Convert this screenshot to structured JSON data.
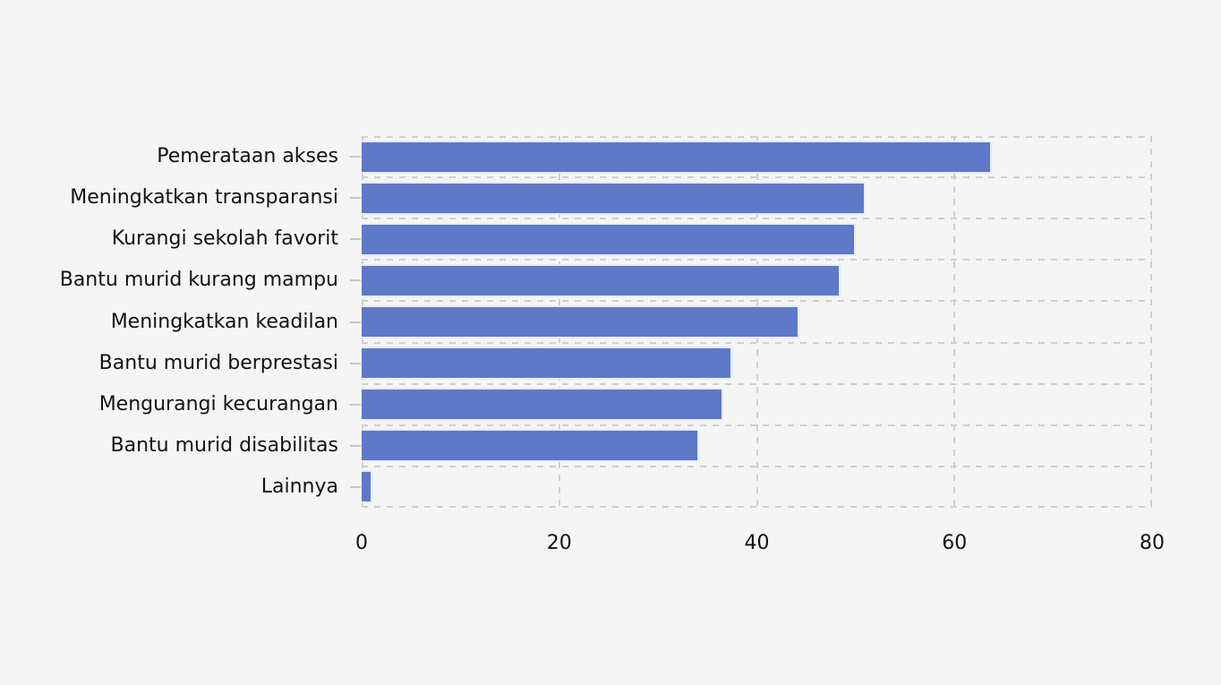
{
  "page": {
    "background_color": "#f5f5f6"
  },
  "chart_data": {
    "type": "bar",
    "orientation": "horizontal",
    "title": "",
    "categories": [
      "Pemerataan akses",
      "Meningkatkan transparansi",
      "Kurangi sekolah favorit",
      "Bantu murid kurang mampu",
      "Meningkatkan keadilan",
      "Bantu murid berprestasi",
      "Mengurangi kecurangan",
      "Bantu murid disabilitas",
      "Lainnya"
    ],
    "values": [
      63.8,
      51.0,
      50.0,
      48.5,
      44.3,
      37.5,
      36.6,
      34.2,
      1.1
    ],
    "xlabel": "",
    "ylabel": "",
    "x_ticks": [
      "0",
      "20",
      "40",
      "60",
      "80"
    ],
    "x_tick_values": [
      0,
      20,
      40,
      60,
      80
    ],
    "xlim": [
      0,
      80
    ],
    "grid": "dashed",
    "legend": "none",
    "colors": {
      "bar_fill": "#5d79c8",
      "bar_stroke": "#e8ebf5",
      "gridline": "#cfcfd1",
      "text": "#121212",
      "background": "#f5f5f6"
    }
  }
}
